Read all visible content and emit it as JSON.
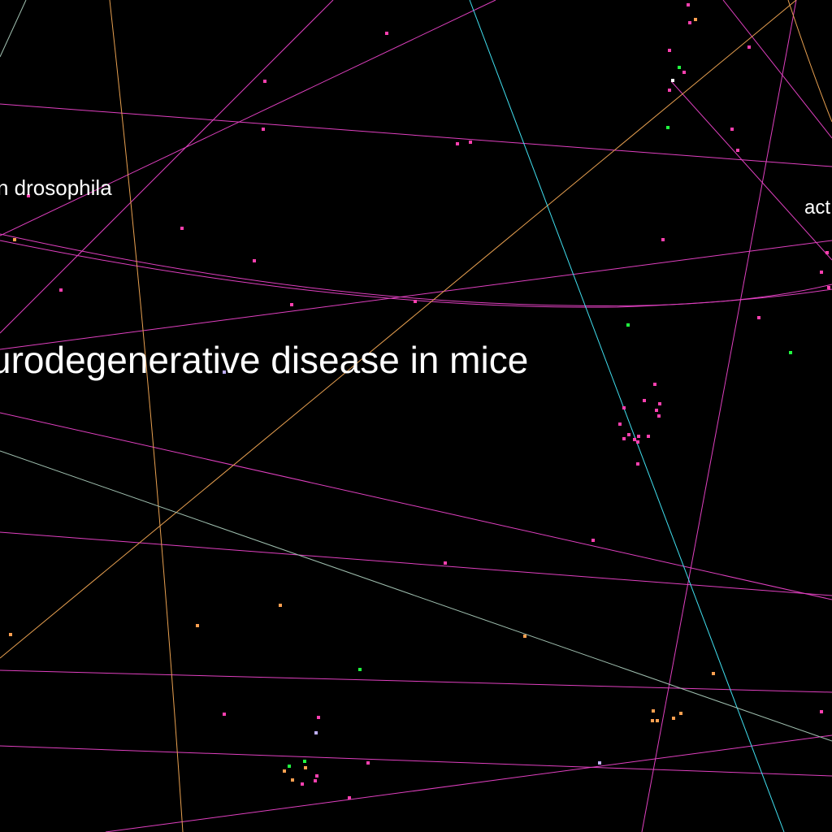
{
  "labels": {
    "main": "urodegenerative disease in mice",
    "left": "n drosophila",
    "right": "act"
  },
  "colors": {
    "background": "#000000",
    "edge_magenta": "#e040c0",
    "edge_orange": "#e8a050",
    "edge_cyan": "#40e0f0",
    "edge_gray": "#a0c0b0",
    "node_pink": "#ff40b0",
    "node_orange": "#ffa050",
    "node_green": "#20ff40",
    "node_lavender": "#c0b0ff",
    "node_white": "#ffffff",
    "label_text": "#ffffff"
  }
}
